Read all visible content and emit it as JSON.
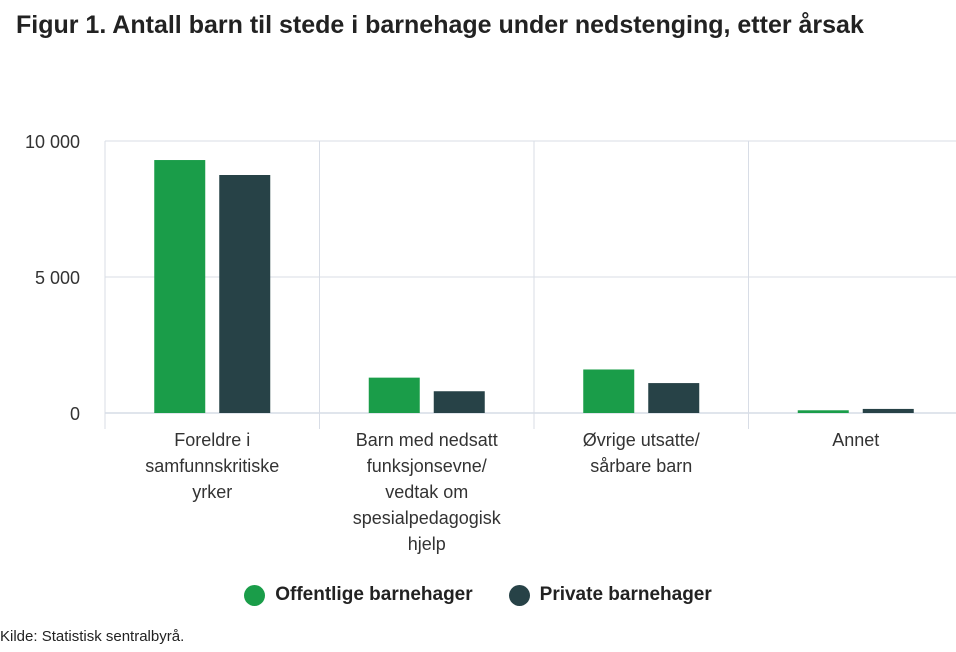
{
  "title": "Figur 1. Antall barn til stede i barnehage under nedstenging, etter årsak",
  "source": "Kilde: Statistisk sentralbyrå.",
  "colors": {
    "offentlige": "#1a9d49",
    "private": "#274247",
    "grid": "#d8dde6",
    "axis": "#c0cbd8"
  },
  "chart_data": {
    "type": "bar",
    "categories": [
      [
        "Foreldre i",
        "samfunnskritiske",
        "yrker"
      ],
      [
        "Barn med nedsatt",
        "funksjonsevne/",
        "vedtak om",
        "spesialpedagogisk",
        "hjelp"
      ],
      [
        "Øvrige utsatte/",
        "sårbare barn"
      ],
      [
        "Annet"
      ]
    ],
    "series": [
      {
        "name": "Offentlige barnehager",
        "values": [
          9300,
          1300,
          1600,
          100
        ]
      },
      {
        "name": "Private barnehager",
        "values": [
          8750,
          800,
          1100,
          150
        ]
      }
    ],
    "ylim": [
      0,
      10000
    ],
    "yticks": [
      0,
      5000,
      10000
    ],
    "ytick_labels": [
      "0",
      "5 000",
      "10 000"
    ],
    "grid": true,
    "legend": "bottom"
  }
}
